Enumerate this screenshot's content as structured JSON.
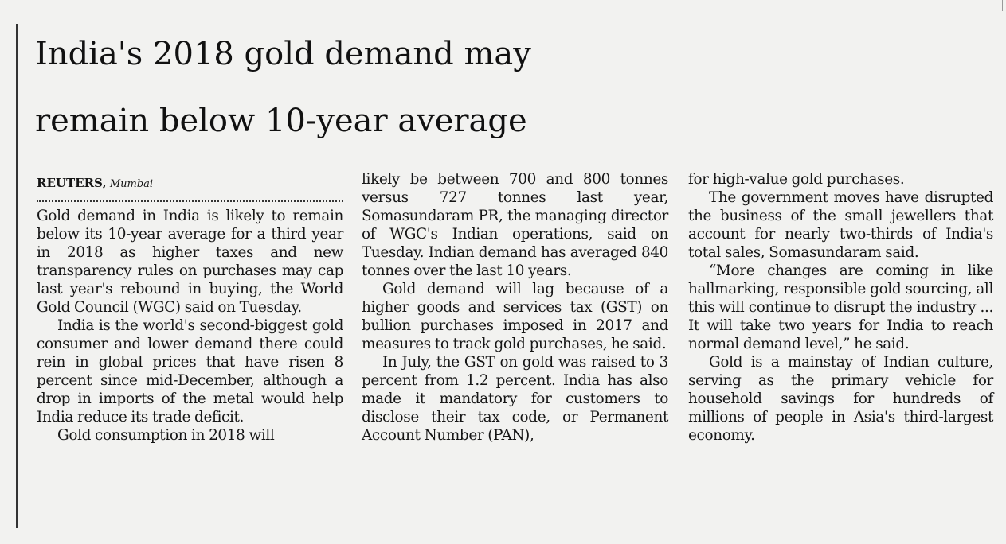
{
  "article": {
    "headline_line1": "India's 2018 gold demand may",
    "headline_line2": "remain below 10-year average",
    "byline_agency": "REUTERS,",
    "byline_place": "Mumbai",
    "col1": {
      "p1": "Gold demand in India is likely to remain below its 10-year average for a third year in 2018 as higher taxes and new transparency rules on purchases may cap last year's rebound in buying, the World Gold Council (WGC) said on Tuesday.",
      "p2": "India is the world's second-biggest gold consumer and lower demand there could rein in global prices that have risen 8 percent since mid-December, although a drop in imports of the metal would help India reduce its trade deficit.",
      "p3": "Gold consumption in 2018 will"
    },
    "col2": {
      "p1": "likely be between 700 and 800 tonnes versus 727 tonnes last year, Somasundaram PR, the managing director of WGC's Indian operations, said on Tuesday. Indian demand has averaged 840 tonnes over the last 10 years.",
      "p2": "Gold demand will lag because of a higher goods and services tax (GST) on bullion purchases imposed in 2017 and measures to track gold purchases, he said.",
      "p3": "In July, the GST on gold was raised to 3 percent from 1.2 percent. India has also made it mandatory for customers to disclose their tax code, or Permanent Account Number (PAN),"
    },
    "col3": {
      "p1": "for high-value gold purchases.",
      "p2": "The government moves have disrupted the business of the small jewellers that account for nearly two-thirds of India's total sales, Somasundaram said.",
      "p3": "“More changes are coming in like hallmarking, responsible gold sourcing, all this will continue to disrupt the industry ... It will take two years for India to reach normal demand level,” he said.",
      "p4": "Gold is a mainstay of Indian culture, serving as the primary vehicle for household savings for hundreds of millions of people in Asia's third-largest economy."
    }
  }
}
